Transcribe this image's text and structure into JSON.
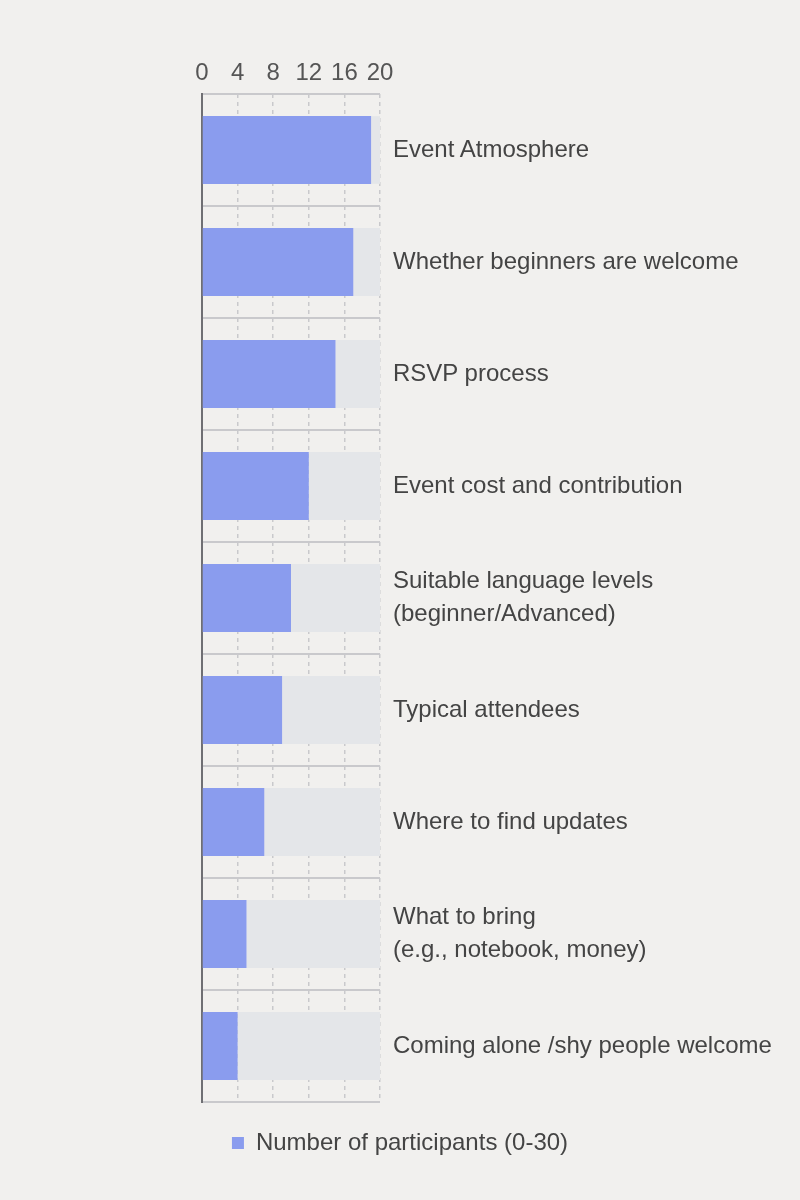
{
  "chart_data": {
    "type": "bar",
    "orientation": "horizontal",
    "stacked": true,
    "categories": [
      "Event Atmosphere",
      "Whether beginners are welcome",
      "RSVP process",
      "Event cost and contribution",
      "Suitable language levels\n(beginner/Advanced)",
      "Typical attendees",
      "Where to find updates",
      "What to bring\n(e.g., notebook, money)",
      "Coming alone /shy people welcome"
    ],
    "series": [
      {
        "name": "Number of participants (0-30)",
        "color": "#8a9cee",
        "values": [
          19,
          17,
          15,
          12,
          10,
          9,
          7,
          5,
          4
        ]
      },
      {
        "color": "#e4e6e9",
        "values": [
          1,
          3,
          5,
          8,
          10,
          11,
          13,
          15,
          16
        ]
      }
    ],
    "xlim": [
      0,
      20
    ],
    "xticks": [
      0,
      4,
      8,
      12,
      16,
      20
    ],
    "grid": true,
    "legend": "bottom"
  }
}
